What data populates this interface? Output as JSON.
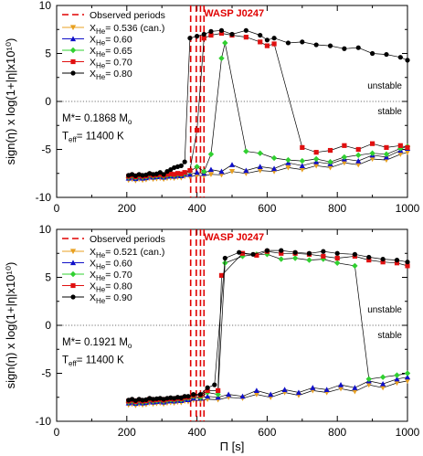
{
  "y_axis_label": "sign(η) x log(1+|η|x10¹⁰)",
  "x_axis_label": "Π [s]",
  "chart_data": [
    {
      "type": "line",
      "xlim": [
        0,
        1000
      ],
      "ylim": [
        -10,
        10
      ],
      "xticks": [
        0,
        200,
        400,
        600,
        800,
        1000
      ],
      "yticks": [
        -10,
        -5,
        0,
        5,
        10
      ],
      "xlabel": "Π [s]",
      "ylabel": "sign(η) x log(1+|η|x10¹⁰)",
      "star_label": "WASP J0247",
      "observed_label": "Observed periods",
      "observed_periods": [
        382,
        398,
        410,
        420
      ],
      "unstable_label": "unstable",
      "stable_label": "stable",
      "mass_text": "M*= 0.1868 M",
      "mass_sub": "o",
      "teff_text": "T",
      "teff_sub": "eff",
      "teff_value": "= 11400 K",
      "legend_prefix": "X",
      "legend_sub": "He",
      "series": [
        {
          "name": "= 0.536 (can.)",
          "color": "#e8a020",
          "marker": "tri-down",
          "x": [
            205,
            215,
            225,
            235,
            245,
            255,
            265,
            275,
            285,
            295,
            305,
            315,
            325,
            335,
            345,
            355,
            365,
            380,
            400,
            420,
            440,
            470,
            500,
            540,
            580,
            620,
            660,
            700,
            740,
            780,
            820,
            860,
            900,
            940,
            980,
            1000
          ],
          "y": [
            -8.2,
            -8.1,
            -8.25,
            -8.1,
            -8.2,
            -8.15,
            -8.0,
            -8.1,
            -8.05,
            -8.0,
            -8.1,
            -8.0,
            -7.95,
            -8.0,
            -7.9,
            -7.95,
            -7.8,
            -7.85,
            -7.7,
            -7.75,
            -7.6,
            -7.65,
            -7.3,
            -7.5,
            -7.2,
            -7.3,
            -6.9,
            -7.1,
            -6.7,
            -6.9,
            -6.4,
            -6.6,
            -6.0,
            -6.1,
            -5.5,
            -5.3
          ]
        },
        {
          "name": "= 0.60",
          "color": "#1010c8",
          "marker": "tri-up",
          "x": [
            205,
            215,
            225,
            235,
            245,
            255,
            265,
            275,
            285,
            295,
            305,
            315,
            325,
            335,
            345,
            355,
            365,
            380,
            400,
            420,
            440,
            470,
            500,
            540,
            580,
            620,
            660,
            700,
            740,
            780,
            820,
            860,
            900,
            940,
            980,
            1000
          ],
          "y": [
            -8.0,
            -7.9,
            -8.05,
            -7.9,
            -8.0,
            -7.95,
            -7.8,
            -7.9,
            -7.85,
            -7.8,
            -7.9,
            -7.8,
            -7.75,
            -7.8,
            -7.7,
            -7.75,
            -7.6,
            -7.6,
            -7.4,
            -7.5,
            -7.1,
            -7.3,
            -6.6,
            -7.2,
            -6.8,
            -7.0,
            -6.4,
            -6.7,
            -6.3,
            -6.5,
            -6.0,
            -6.2,
            -5.6,
            -5.8,
            -5.1,
            -4.9
          ]
        },
        {
          "name": "= 0.65",
          "color": "#30d030",
          "marker": "diamond",
          "x": [
            205,
            215,
            225,
            235,
            245,
            255,
            265,
            275,
            285,
            295,
            305,
            315,
            325,
            335,
            345,
            355,
            365,
            380,
            400,
            420,
            440,
            470,
            480,
            540,
            580,
            620,
            660,
            700,
            740,
            780,
            820,
            860,
            900,
            940,
            980,
            1000
          ],
          "y": [
            -7.9,
            -7.8,
            -7.95,
            -7.8,
            -7.9,
            -7.85,
            -7.7,
            -7.8,
            -7.75,
            -7.7,
            -7.8,
            -7.7,
            -7.65,
            -7.7,
            -7.6,
            -7.65,
            -7.5,
            -7.3,
            -6.8,
            -7.3,
            -5.5,
            4.5,
            6.1,
            -5.2,
            -5.4,
            -5.9,
            -6.1,
            -6.2,
            -6.0,
            -6.3,
            -5.8,
            -5.6,
            -5.4,
            -5.5,
            -4.9,
            -4.7
          ]
        },
        {
          "name": "= 0.70",
          "color": "#e01010",
          "marker": "square",
          "x": [
            205,
            215,
            225,
            235,
            245,
            255,
            265,
            275,
            285,
            295,
            305,
            315,
            325,
            335,
            345,
            355,
            365,
            380,
            400,
            420,
            440,
            470,
            500,
            540,
            580,
            600,
            620,
            700,
            740,
            780,
            820,
            860,
            900,
            940,
            980,
            1000
          ],
          "y": [
            -7.8,
            -7.7,
            -7.85,
            -7.7,
            -7.8,
            -7.75,
            -7.6,
            -7.7,
            -7.65,
            -7.6,
            -7.7,
            -7.6,
            -7.55,
            -7.6,
            -7.5,
            -7.55,
            -7.4,
            -7.2,
            -3.0,
            6.6,
            6.9,
            7.1,
            6.9,
            6.7,
            6.2,
            5.8,
            6.0,
            -4.8,
            -5.3,
            -5.1,
            -4.6,
            -5.0,
            -4.4,
            -4.8,
            -4.6,
            -4.8
          ]
        },
        {
          "name": "= 0.80",
          "color": "#000000",
          "marker": "circle",
          "x": [
            205,
            215,
            225,
            235,
            245,
            255,
            265,
            275,
            285,
            295,
            305,
            315,
            325,
            335,
            345,
            355,
            365,
            380,
            400,
            420,
            440,
            470,
            500,
            540,
            580,
            600,
            620,
            660,
            700,
            740,
            780,
            820,
            860,
            900,
            940,
            980,
            1000
          ],
          "y": [
            -7.7,
            -7.6,
            -7.75,
            -7.6,
            -7.7,
            -7.65,
            -7.5,
            -7.6,
            -7.55,
            -7.4,
            -7.6,
            -7.3,
            -7.1,
            -6.9,
            -6.8,
            -6.7,
            -6.3,
            6.6,
            6.8,
            7.0,
            7.3,
            7.4,
            7.0,
            7.4,
            6.9,
            6.4,
            6.6,
            6.1,
            6.2,
            5.9,
            5.8,
            5.5,
            5.6,
            5.0,
            4.9,
            4.6,
            4.3
          ]
        }
      ]
    },
    {
      "type": "line",
      "xlim": [
        0,
        1000
      ],
      "ylim": [
        -10,
        10
      ],
      "xticks": [
        0,
        200,
        400,
        600,
        800,
        1000
      ],
      "yticks": [
        -10,
        -5,
        0,
        5,
        10
      ],
      "xlabel": "Π [s]",
      "ylabel": "sign(η) x log(1+|η|x10¹⁰)",
      "star_label": "WASP J0247",
      "observed_label": "Observed periods",
      "observed_periods": [
        382,
        398,
        410,
        420
      ],
      "unstable_label": "unstable",
      "stable_label": "stable",
      "mass_text": "M*= 0.1921 M",
      "mass_sub": "o",
      "teff_text": "T",
      "teff_sub": "eff",
      "teff_value": "= 11400 K",
      "legend_prefix": "X",
      "legend_sub": "He",
      "series": [
        {
          "name": "= 0.521 (can.)",
          "color": "#e8a020",
          "marker": "tri-down",
          "x": [
            205,
            215,
            225,
            235,
            245,
            255,
            265,
            275,
            285,
            295,
            305,
            315,
            325,
            335,
            345,
            355,
            365,
            375,
            390,
            410,
            430,
            460,
            490,
            530,
            570,
            610,
            650,
            690,
            730,
            770,
            810,
            850,
            890,
            930,
            970,
            1000
          ],
          "y": [
            -8.3,
            -8.2,
            -8.35,
            -8.2,
            -8.3,
            -8.25,
            -8.1,
            -8.2,
            -8.15,
            -8.1,
            -8.2,
            -8.1,
            -8.05,
            -8.1,
            -8.0,
            -8.05,
            -7.9,
            -7.95,
            -7.8,
            -7.85,
            -7.7,
            -7.75,
            -7.5,
            -7.6,
            -7.2,
            -7.5,
            -7.0,
            -7.3,
            -6.8,
            -7.0,
            -6.6,
            -6.9,
            -6.2,
            -6.5,
            -6.0,
            -5.8
          ]
        },
        {
          "name": "= 0.60",
          "color": "#1010c8",
          "marker": "tri-up",
          "x": [
            205,
            215,
            225,
            235,
            245,
            255,
            265,
            275,
            285,
            295,
            305,
            315,
            325,
            335,
            345,
            355,
            365,
            375,
            390,
            410,
            430,
            460,
            490,
            530,
            570,
            610,
            650,
            690,
            730,
            770,
            810,
            850,
            890,
            930,
            970,
            1000
          ],
          "y": [
            -8.1,
            -8.0,
            -8.15,
            -8.0,
            -8.1,
            -8.05,
            -7.9,
            -8.0,
            -7.95,
            -7.9,
            -8.0,
            -7.9,
            -7.85,
            -7.9,
            -7.8,
            -7.85,
            -7.7,
            -7.75,
            -7.6,
            -7.6,
            -7.4,
            -7.5,
            -7.2,
            -7.4,
            -6.8,
            -7.2,
            -6.7,
            -7.0,
            -6.5,
            -6.7,
            -6.2,
            -6.5,
            -5.8,
            -6.1,
            -5.6,
            -5.4
          ]
        },
        {
          "name": "= 0.70",
          "color": "#30d030",
          "marker": "diamond",
          "x": [
            205,
            215,
            225,
            235,
            245,
            255,
            265,
            275,
            285,
            295,
            305,
            315,
            325,
            335,
            345,
            355,
            365,
            375,
            390,
            410,
            430,
            460,
            480,
            530,
            570,
            600,
            640,
            680,
            720,
            760,
            800,
            850,
            890,
            930,
            970,
            1000
          ],
          "y": [
            -8.0,
            -7.9,
            -8.05,
            -7.9,
            -8.0,
            -7.95,
            -7.8,
            -7.9,
            -7.85,
            -7.8,
            -7.9,
            -7.8,
            -7.75,
            -7.8,
            -7.7,
            -7.75,
            -7.6,
            -7.6,
            -7.4,
            -7.5,
            -7.0,
            -7.2,
            6.5,
            7.2,
            7.4,
            7.4,
            6.9,
            7.0,
            6.8,
            6.9,
            6.5,
            6.2,
            -5.6,
            -5.4,
            -5.2,
            -5.0
          ]
        },
        {
          "name": "= 0.80",
          "color": "#e01010",
          "marker": "square",
          "x": [
            205,
            215,
            225,
            235,
            245,
            255,
            265,
            275,
            285,
            295,
            305,
            315,
            325,
            335,
            345,
            355,
            365,
            375,
            390,
            410,
            430,
            460,
            470,
            530,
            570,
            600,
            640,
            680,
            720,
            760,
            800,
            850,
            890,
            930,
            970,
            1000
          ],
          "y": [
            -7.9,
            -7.8,
            -7.95,
            -7.8,
            -7.9,
            -7.85,
            -7.7,
            -7.8,
            -7.75,
            -7.7,
            -7.8,
            -7.7,
            -7.65,
            -7.7,
            -7.6,
            -7.65,
            -7.5,
            -7.5,
            -7.3,
            -7.3,
            -6.8,
            -6.8,
            5.2,
            7.5,
            7.3,
            7.7,
            7.5,
            7.5,
            7.4,
            7.2,
            7.0,
            7.2,
            6.8,
            6.6,
            6.5,
            6.2
          ]
        },
        {
          "name": "= 0.90",
          "color": "#000000",
          "marker": "circle",
          "x": [
            205,
            215,
            225,
            235,
            245,
            255,
            265,
            275,
            285,
            295,
            305,
            315,
            325,
            335,
            345,
            355,
            365,
            375,
            390,
            410,
            430,
            450,
            480,
            520,
            560,
            600,
            640,
            680,
            720,
            760,
            800,
            850,
            890,
            930,
            970,
            1000
          ],
          "y": [
            -7.8,
            -7.7,
            -7.85,
            -7.7,
            -7.8,
            -7.75,
            -7.6,
            -7.7,
            -7.65,
            -7.6,
            -7.7,
            -7.6,
            -7.55,
            -7.6,
            -7.5,
            -7.55,
            -7.4,
            -7.4,
            -7.2,
            -7.2,
            -6.5,
            -6.2,
            7.0,
            7.6,
            7.4,
            7.8,
            7.8,
            7.6,
            7.5,
            7.7,
            7.5,
            7.4,
            7.1,
            6.9,
            6.8,
            6.6
          ]
        }
      ]
    }
  ]
}
